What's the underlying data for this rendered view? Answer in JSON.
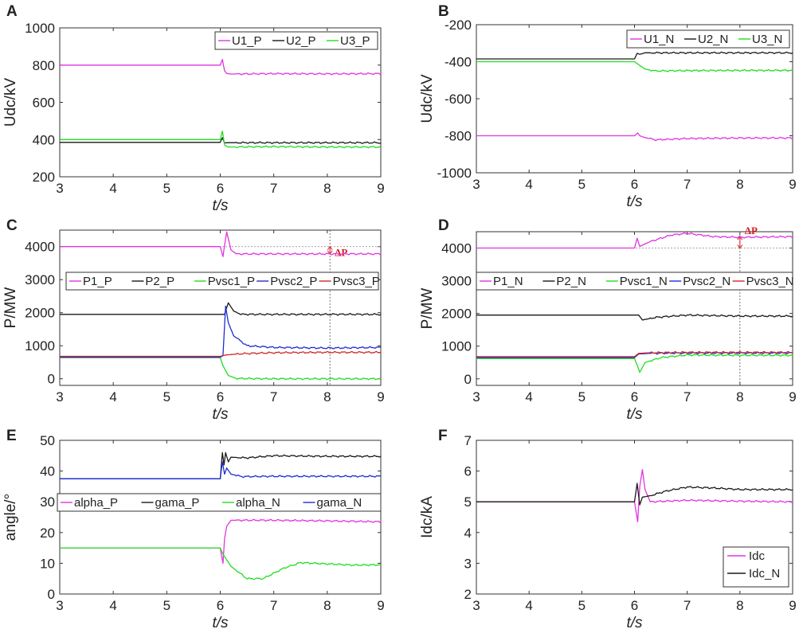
{
  "chart_data": [
    {
      "id": "A",
      "panel_label": "A",
      "type": "line",
      "xlabel": "t/s",
      "ylabel": "Udc/kV",
      "xlim": [
        3,
        9
      ],
      "ylim": [
        200,
        1000
      ],
      "xticks": [
        "3",
        "4",
        "5",
        "6",
        "7",
        "8",
        "9"
      ],
      "yticks": [
        "200",
        "400",
        "600",
        "800",
        "1000"
      ],
      "legend": {
        "position": "top-right",
        "layout": "horizontal"
      },
      "series": [
        {
          "name": "U1_P",
          "color": "#e233e2",
          "x": [
            3,
            6.0,
            6.04,
            6.08,
            6.12,
            6.2,
            7,
            8,
            9
          ],
          "y": [
            800,
            800,
            830,
            770,
            755,
            752,
            754,
            753,
            754
          ]
        },
        {
          "name": "U2_P",
          "color": "#1a1a1a",
          "x": [
            3,
            6.0,
            6.04,
            6.08,
            6.15,
            7,
            8,
            9
          ],
          "y": [
            385,
            385,
            410,
            382,
            383,
            383,
            383,
            383
          ]
        },
        {
          "name": "U3_P",
          "color": "#22dd22",
          "x": [
            3,
            6.0,
            6.04,
            6.08,
            6.15,
            7,
            8,
            9
          ],
          "y": [
            400,
            400,
            445,
            370,
            360,
            362,
            360,
            360
          ]
        }
      ]
    },
    {
      "id": "B",
      "panel_label": "B",
      "type": "line",
      "xlabel": "t/s",
      "ylabel": "Udc/kV",
      "xlim": [
        3,
        9
      ],
      "ylim": [
        -1000,
        -200
      ],
      "xticks": [
        "3",
        "4",
        "5",
        "6",
        "7",
        "8",
        "9"
      ],
      "yticks": [
        "-1000",
        "-800",
        "-600",
        "-400",
        "-200"
      ],
      "legend": {
        "position": "top-right",
        "layout": "horizontal"
      },
      "series": [
        {
          "name": "U1_N",
          "color": "#e233e2",
          "x": [
            3,
            6.0,
            6.06,
            6.1,
            6.2,
            6.4,
            7,
            8,
            9
          ],
          "y": [
            -800,
            -800,
            -785,
            -800,
            -810,
            -822,
            -815,
            -812,
            -812
          ]
        },
        {
          "name": "U2_N",
          "color": "#1a1a1a",
          "x": [
            3,
            6.0,
            6.05,
            6.1,
            6.2,
            7,
            8,
            9
          ],
          "y": [
            -385,
            -385,
            -355,
            -360,
            -352,
            -352,
            -352,
            -352
          ]
        },
        {
          "name": "U3_N",
          "color": "#22dd22",
          "x": [
            3,
            6.0,
            6.1,
            6.2,
            6.4,
            7,
            8,
            9
          ],
          "y": [
            -400,
            -400,
            -420,
            -440,
            -450,
            -448,
            -447,
            -447
          ]
        }
      ]
    },
    {
      "id": "C",
      "panel_label": "C",
      "type": "line",
      "xlabel": "t/s",
      "ylabel": "P/MW",
      "xlim": [
        3,
        9
      ],
      "ylim": [
        -200,
        4500
      ],
      "xticks": [
        "3",
        "4",
        "5",
        "6",
        "7",
        "8",
        "9"
      ],
      "yticks": [
        "0",
        "1000",
        "2000",
        "3000",
        "4000"
      ],
      "legend": {
        "position": "upper-center",
        "layout": "horizontal"
      },
      "annotation": {
        "text": "ΔP",
        "x": 8.05
      },
      "series": [
        {
          "name": "P1_P",
          "color": "#e233e2",
          "x": [
            3,
            6.0,
            6.05,
            6.12,
            6.2,
            6.3,
            7,
            8,
            9
          ],
          "y": [
            4000,
            4000,
            3700,
            4450,
            3900,
            3780,
            3780,
            3780,
            3780
          ]
        },
        {
          "name": "P2_P",
          "color": "#1a1a1a",
          "x": [
            3,
            6.0,
            6.08,
            6.15,
            6.25,
            6.4,
            7,
            8,
            9
          ],
          "y": [
            1950,
            1950,
            1950,
            2300,
            2050,
            1950,
            1950,
            1950,
            1950
          ]
        },
        {
          "name": "Pvsc1_P",
          "color": "#22dd22",
          "x": [
            3,
            6.0,
            6.05,
            6.15,
            6.3,
            7,
            9
          ],
          "y": [
            640,
            640,
            400,
            100,
            10,
            0,
            0
          ]
        },
        {
          "name": "Pvsc2_P",
          "color": "#1f2fcf",
          "x": [
            3,
            6.0,
            6.05,
            6.1,
            6.15,
            6.25,
            6.5,
            7,
            8,
            9
          ],
          "y": [
            650,
            650,
            700,
            2200,
            1700,
            1300,
            1000,
            950,
            930,
            950
          ]
        },
        {
          "name": "Pvsc3_P",
          "color": "#d02828",
          "x": [
            3,
            6.0,
            6.1,
            6.4,
            7,
            8,
            9
          ],
          "y": [
            680,
            680,
            720,
            760,
            790,
            800,
            800
          ]
        }
      ]
    },
    {
      "id": "D",
      "panel_label": "D",
      "type": "line",
      "xlabel": "t/s",
      "ylabel": "P/MW",
      "xlim": [
        3,
        9
      ],
      "ylim": [
        -200,
        4500
      ],
      "xticks": [
        "3",
        "4",
        "5",
        "6",
        "7",
        "8",
        "9"
      ],
      "yticks": [
        "0",
        "1000",
        "2000",
        "3000",
        "4000"
      ],
      "legend": {
        "position": "upper-center",
        "layout": "horizontal"
      },
      "annotation": {
        "text": "ΔP",
        "x": 8.0
      },
      "series": [
        {
          "name": "P1_N",
          "color": "#e233e2",
          "x": [
            3,
            6.0,
            6.05,
            6.1,
            6.3,
            6.7,
            7,
            7.5,
            8,
            9
          ],
          "y": [
            4000,
            4000,
            4300,
            4050,
            4200,
            4400,
            4450,
            4350,
            4330,
            4350
          ]
        },
        {
          "name": "P2_N",
          "color": "#1a1a1a",
          "x": [
            3,
            6.0,
            6.08,
            6.15,
            6.4,
            7,
            8,
            9
          ],
          "y": [
            1950,
            1950,
            1950,
            1800,
            1880,
            1950,
            1920,
            1920
          ]
        },
        {
          "name": "Pvsc1_N",
          "color": "#22dd22",
          "x": [
            3,
            6.0,
            6.06,
            6.1,
            6.2,
            6.5,
            7,
            8,
            9
          ],
          "y": [
            620,
            620,
            380,
            200,
            500,
            650,
            730,
            720,
            720
          ]
        },
        {
          "name": "Pvsc2_N",
          "color": "#1f2fcf",
          "x": [
            3,
            6.0,
            6.08,
            6.3,
            7,
            8,
            9
          ],
          "y": [
            650,
            650,
            760,
            780,
            790,
            790,
            790
          ]
        },
        {
          "name": "Pvsc3_N",
          "color": "#d02828",
          "x": [
            3,
            6.0,
            6.08,
            6.3,
            7,
            8,
            9
          ],
          "y": [
            680,
            680,
            780,
            800,
            810,
            810,
            810
          ]
        }
      ]
    },
    {
      "id": "E",
      "panel_label": "E",
      "type": "line",
      "xlabel": "t/s",
      "ylabel": "angle/°",
      "xlim": [
        3,
        9
      ],
      "ylim": [
        0,
        50
      ],
      "xticks": [
        "3",
        "4",
        "5",
        "6",
        "7",
        "8",
        "9"
      ],
      "yticks": [
        "0",
        "10",
        "20",
        "30",
        "40",
        "50"
      ],
      "legend": {
        "position": "center",
        "layout": "horizontal"
      },
      "series": [
        {
          "name": "alpha_P",
          "color": "#e233e2",
          "x": [
            3,
            6.0,
            6.05,
            6.08,
            6.12,
            6.2,
            6.3,
            7,
            8,
            9
          ],
          "y": [
            15,
            15,
            10,
            18,
            22,
            24,
            24,
            24,
            23.8,
            23.5
          ]
        },
        {
          "name": "gama_P",
          "color": "#1a1a1a",
          "x": [
            3,
            6.0,
            6.04,
            6.07,
            6.1,
            6.15,
            6.2,
            6.5,
            7,
            8,
            9
          ],
          "y": [
            37.5,
            37.5,
            46,
            42,
            46,
            43,
            44.5,
            44.3,
            45,
            44.8,
            44.8
          ]
        },
        {
          "name": "alpha_N",
          "color": "#22dd22",
          "x": [
            3,
            6.0,
            6.05,
            6.2,
            6.5,
            6.8,
            7.2,
            7.5,
            8,
            8.5,
            9
          ],
          "y": [
            15,
            15,
            13,
            9,
            5,
            5,
            8.5,
            10.2,
            9.8,
            9.4,
            9.5
          ]
        },
        {
          "name": "gama_N",
          "color": "#1f2fcf",
          "x": [
            3,
            6.0,
            6.04,
            6.08,
            6.12,
            6.2,
            6.4,
            7,
            8,
            9
          ],
          "y": [
            37.5,
            37.5,
            43,
            39,
            41,
            39,
            38.2,
            38.3,
            38.3,
            38.3
          ]
        }
      ]
    },
    {
      "id": "F",
      "panel_label": "F",
      "type": "line",
      "xlabel": "t/s",
      "ylabel": "Idc/kA",
      "xlim": [
        3,
        9
      ],
      "ylim": [
        2,
        7
      ],
      "xticks": [
        "3",
        "4",
        "5",
        "6",
        "7",
        "8",
        "9"
      ],
      "yticks": [
        "2",
        "3",
        "4",
        "5",
        "6",
        "7"
      ],
      "legend": {
        "position": "bottom-right",
        "layout": "vertical"
      },
      "series": [
        {
          "name": "Idc",
          "color": "#e233e2",
          "x": [
            3,
            6.0,
            6.06,
            6.1,
            6.15,
            6.2,
            6.3,
            7,
            8,
            9
          ],
          "y": [
            5,
            5,
            4.35,
            5.5,
            6.05,
            5.4,
            5.0,
            5.05,
            5.02,
            5.0
          ]
        },
        {
          "name": "Idc_N",
          "color": "#1a1a1a",
          "x": [
            3,
            6.0,
            6.05,
            6.1,
            6.15,
            6.3,
            6.6,
            7,
            7.5,
            8,
            9
          ],
          "y": [
            5,
            5,
            5.6,
            4.9,
            5.15,
            5.2,
            5.35,
            5.48,
            5.45,
            5.4,
            5.4
          ]
        }
      ]
    }
  ]
}
